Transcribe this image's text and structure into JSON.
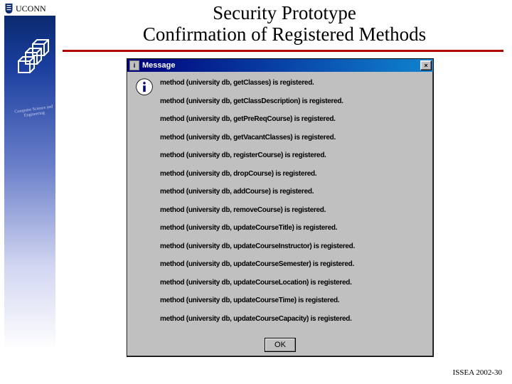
{
  "badge": {
    "text": "UCONN",
    "ring_text": "Computer Science and Engineering"
  },
  "title": {
    "line1": "Security Prototype",
    "line2": "Confirmation of Registered Methods"
  },
  "colors": {
    "underline": "#b00000",
    "gradient_top": "#0b2a6f",
    "titlebar": "#00007b"
  },
  "msgbox": {
    "title": "Message",
    "ok_label": "OK",
    "close_label": "×",
    "lines": [
      "method (university db, getClasses) is registered.",
      "method (university db, getClassDescription) is registered.",
      "method (university db, getPreReqCourse) is registered.",
      "method (university db, getVacantClasses) is registered.",
      "method (university db, registerCourse) is registered.",
      "method (university db, dropCourse) is registered.",
      "method (university db, addCourse) is registered.",
      "method (university db, removeCourse) is registered.",
      "method (university db, updateCourseTitle) is registered.",
      "method (university db, updateCourseInstructor) is registered.",
      "method (university db, updateCourseSemester) is registered.",
      "method (university db, updateCourseLocation) is registered.",
      "method (university db, updateCourseTime) is registered.",
      "method (university db, updateCourseCapacity) is registered."
    ]
  },
  "footer": "ISSEA 2002-30"
}
